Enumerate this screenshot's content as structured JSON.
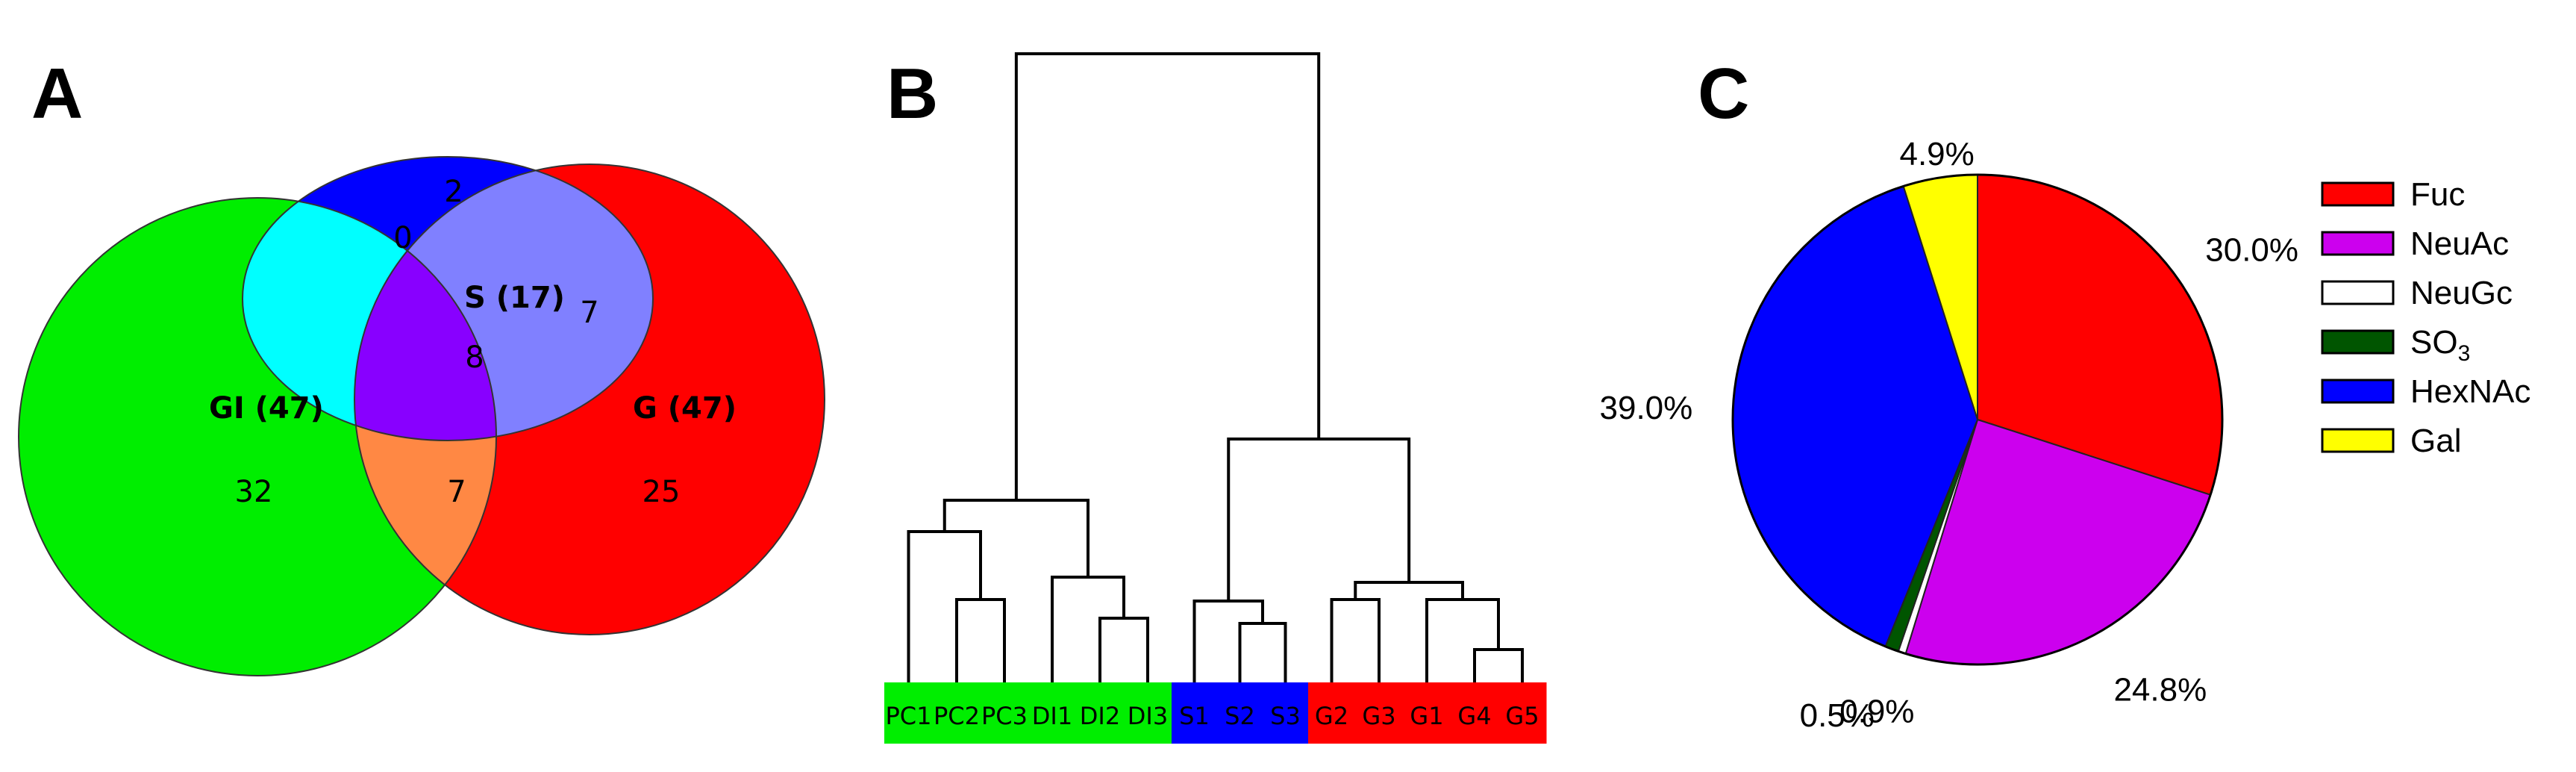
{
  "panels": {
    "A": "A",
    "B": "B",
    "C": "C"
  },
  "colors": {
    "GI": "#00ee00",
    "G": "#ff0000",
    "S": "#0000ff",
    "GI_S_only": "#00ffff",
    "GI_G_only": "#ff8844",
    "S_G_only": "#8080ff",
    "all_three": "#8800ff"
  },
  "venn": {
    "sets": [
      {
        "id": "GI",
        "label": "GI (47)"
      },
      {
        "id": "G",
        "label": "G (47)"
      },
      {
        "id": "S",
        "label": "S (17)"
      }
    ],
    "regions": [
      {
        "id": "GI_only",
        "value": "32"
      },
      {
        "id": "G_only",
        "value": "25"
      },
      {
        "id": "S_only",
        "value": "2"
      },
      {
        "id": "GI_S_only",
        "value": "0"
      },
      {
        "id": "GI_G_only",
        "value": "7"
      },
      {
        "id": "S_G_only",
        "value": "7"
      },
      {
        "id": "all_three",
        "value": "8"
      }
    ]
  },
  "dendrogram": {
    "leaves": [
      {
        "label": "PC1",
        "group": "GI"
      },
      {
        "label": "PC2",
        "group": "GI"
      },
      {
        "label": "PC3",
        "group": "GI"
      },
      {
        "label": "DI1",
        "group": "GI"
      },
      {
        "label": "DI2",
        "group": "GI"
      },
      {
        "label": "DI3",
        "group": "GI"
      },
      {
        "label": "S1",
        "group": "S"
      },
      {
        "label": "S2",
        "group": "S"
      },
      {
        "label": "S3",
        "group": "S"
      },
      {
        "label": "G2",
        "group": "G"
      },
      {
        "label": "G3",
        "group": "G"
      },
      {
        "label": "G1",
        "group": "G"
      },
      {
        "label": "G4",
        "group": "G"
      },
      {
        "label": "G5",
        "group": "G"
      }
    ]
  },
  "chart_data": {
    "type": "pie",
    "slices": [
      {
        "label": "Fuc",
        "value": 30.0,
        "text": "30.0%",
        "color": "#ff0000"
      },
      {
        "label": "NeuAc",
        "value": 24.8,
        "text": "24.8%",
        "color": "#cc00ee"
      },
      {
        "label": "NeuGc",
        "value": 0.5,
        "text": "0.5%",
        "color": "#ffffff"
      },
      {
        "label": "SO3",
        "value": 0.9,
        "text": "0.9%",
        "color": "#005500"
      },
      {
        "label": "HexNAc",
        "value": 39.0,
        "text": "39.0%",
        "color": "#0000ff"
      },
      {
        "label": "Gal",
        "value": 4.9,
        "text": "4.9%",
        "color": "#ffff00"
      }
    ],
    "legend": [
      {
        "name": "Fuc",
        "color": "#ff0000"
      },
      {
        "name": "NeuAc",
        "color": "#cc00ee"
      },
      {
        "name": "NeuGc",
        "color": "#ffffff"
      },
      {
        "name": "SO",
        "sub": "3",
        "color": "#005500"
      },
      {
        "name": "HexNAc",
        "color": "#0000ff"
      },
      {
        "name": "Gal",
        "color": "#ffff00"
      }
    ],
    "legend_position": "right"
  }
}
